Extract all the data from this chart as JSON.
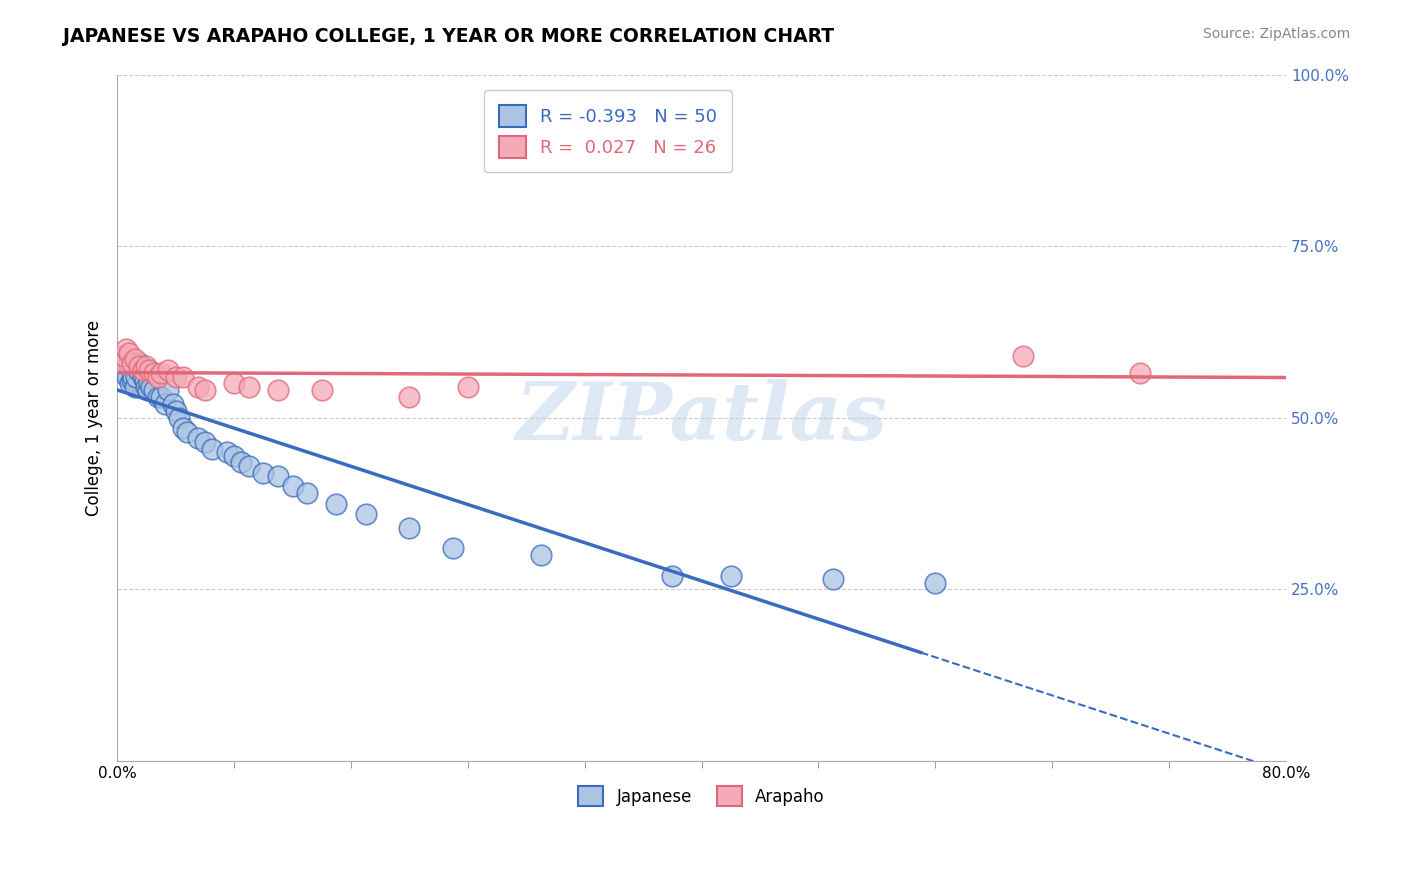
{
  "title": "JAPANESE VS ARAPAHO COLLEGE, 1 YEAR OR MORE CORRELATION CHART",
  "source_text": "Source: ZipAtlas.com",
  "ylabel": "College, 1 year or more",
  "x_min": 0.0,
  "x_max": 0.8,
  "y_min": 0.0,
  "y_max": 1.0,
  "x_ticks": [
    0.0,
    0.8
  ],
  "x_tick_labels": [
    "0.0%",
    "80.0%"
  ],
  "y_ticks": [
    0.0,
    0.25,
    0.5,
    0.75,
    1.0
  ],
  "y_tick_labels": [
    "",
    "25.0%",
    "50.0%",
    "75.0%",
    "100.0%"
  ],
  "japanese_R": -0.393,
  "japanese_N": 50,
  "arapaho_R": 0.027,
  "arapaho_N": 26,
  "japanese_color": "#aac4e2",
  "arapaho_color": "#f5aab8",
  "japanese_line_color": "#3b6bbf",
  "arapaho_line_color": "#e06878",
  "watermark_text": "ZIPatlas",
  "japanese_x": [
    0.003,
    0.004,
    0.005,
    0.006,
    0.007,
    0.008,
    0.009,
    0.01,
    0.011,
    0.012,
    0.013,
    0.014,
    0.015,
    0.016,
    0.018,
    0.019,
    0.02,
    0.021,
    0.022,
    0.023,
    0.025,
    0.028,
    0.03,
    0.033,
    0.035,
    0.038,
    0.04,
    0.042,
    0.045,
    0.048,
    0.055,
    0.06,
    0.065,
    0.075,
    0.08,
    0.085,
    0.09,
    0.1,
    0.11,
    0.12,
    0.13,
    0.15,
    0.17,
    0.2,
    0.23,
    0.29,
    0.38,
    0.42,
    0.49,
    0.56
  ],
  "japanese_y": [
    0.58,
    0.59,
    0.57,
    0.565,
    0.56,
    0.58,
    0.55,
    0.555,
    0.56,
    0.545,
    0.56,
    0.57,
    0.58,
    0.575,
    0.56,
    0.555,
    0.545,
    0.54,
    0.55,
    0.545,
    0.54,
    0.53,
    0.53,
    0.52,
    0.54,
    0.52,
    0.51,
    0.5,
    0.485,
    0.48,
    0.47,
    0.465,
    0.455,
    0.45,
    0.445,
    0.435,
    0.43,
    0.42,
    0.415,
    0.4,
    0.39,
    0.375,
    0.36,
    0.34,
    0.31,
    0.3,
    0.27,
    0.27,
    0.265,
    0.26
  ],
  "arapaho_x": [
    0.003,
    0.005,
    0.006,
    0.008,
    0.01,
    0.012,
    0.015,
    0.018,
    0.02,
    0.022,
    0.025,
    0.028,
    0.03,
    0.035,
    0.04,
    0.045,
    0.055,
    0.06,
    0.08,
    0.09,
    0.11,
    0.14,
    0.2,
    0.24,
    0.62,
    0.7
  ],
  "arapaho_y": [
    0.58,
    0.59,
    0.6,
    0.595,
    0.58,
    0.585,
    0.575,
    0.57,
    0.575,
    0.57,
    0.565,
    0.56,
    0.565,
    0.57,
    0.56,
    0.56,
    0.545,
    0.54,
    0.55,
    0.545,
    0.54,
    0.54,
    0.53,
    0.545,
    0.59,
    0.565
  ],
  "jap_line_solid_end": 0.55,
  "jap_line_dashed_start": 0.55
}
